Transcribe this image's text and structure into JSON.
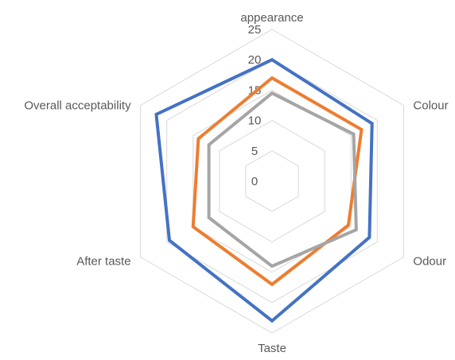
{
  "chart_data": {
    "type": "radar",
    "axes": [
      "appearance",
      "Colour",
      "Odour",
      "Taste",
      "After taste",
      "Overall acceptability"
    ],
    "r_ticks": [
      "0",
      "5",
      "10",
      "15",
      "20",
      "25"
    ],
    "r_range": [
      0,
      25
    ],
    "r_tick_values": [
      0,
      5,
      10,
      15,
      20,
      25
    ],
    "grid": true,
    "legend": "none",
    "series": [
      {
        "color": "#4472C4",
        "values": [
          20,
          19,
          18.5,
          23,
          19.5,
          22
        ]
      },
      {
        "color": "#ED7D31",
        "values": [
          17,
          17,
          14.5,
          17,
          15,
          14
        ]
      },
      {
        "color": "#A5A5A5",
        "values": [
          14.5,
          15.5,
          16,
          14,
          12,
          12
        ]
      }
    ]
  }
}
